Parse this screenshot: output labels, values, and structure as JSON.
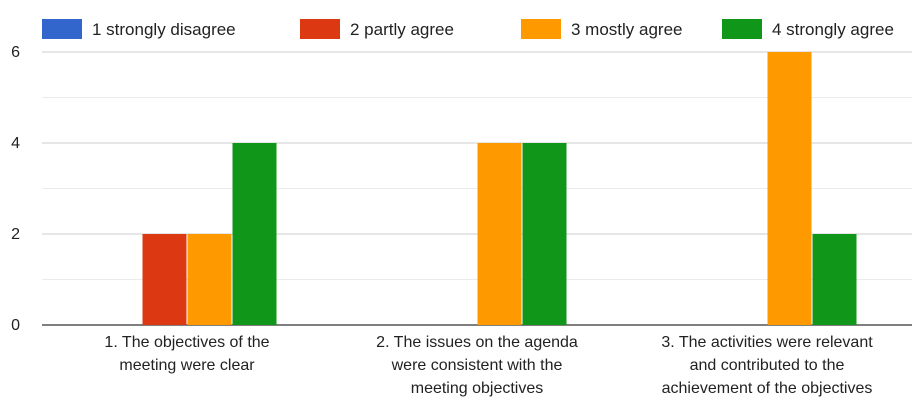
{
  "chart_data": {
    "type": "bar",
    "categories": [
      [
        "1. The objectives of the",
        "meeting were clear"
      ],
      [
        "2. The issues on the agenda",
        "were consistent with the",
        "meeting objectives"
      ],
      [
        "3. The activities were relevant",
        "and contributed to the",
        "achievement of the objectives"
      ]
    ],
    "series": [
      {
        "name": "1 strongly disagree",
        "color": "#3366cc",
        "values": [
          0,
          0,
          0
        ]
      },
      {
        "name": "2 partly agree",
        "color": "#dc3912",
        "values": [
          2,
          0,
          0
        ]
      },
      {
        "name": "3 mostly agree",
        "color": "#ff9900",
        "values": [
          2,
          4,
          6
        ]
      },
      {
        "name": "4 strongly agree",
        "color": "#109618",
        "values": [
          4,
          4,
          2
        ]
      }
    ],
    "yticks": [
      0,
      2,
      4,
      6
    ],
    "ylim": [
      0,
      6
    ],
    "grid": true,
    "legend": "top"
  }
}
